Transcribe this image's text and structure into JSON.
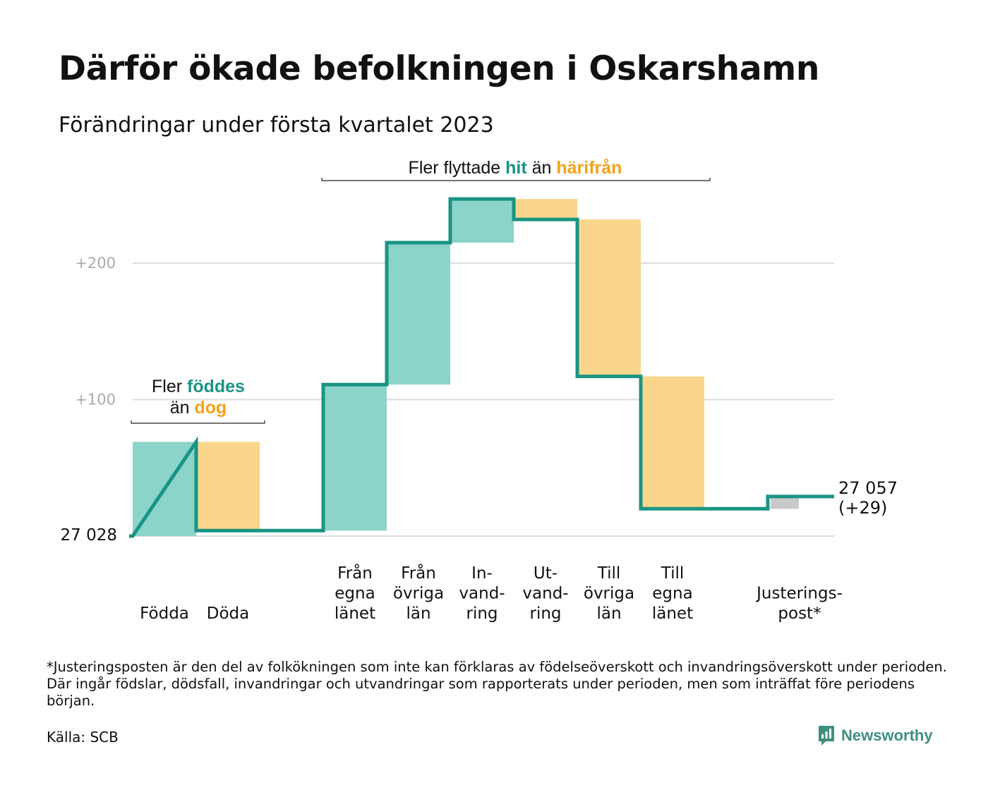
{
  "title": "Därför ökade befolkningen i Oskarshamn",
  "subtitle": "Förändringar under första kvartalet 2023",
  "footnote": "*Justeringsposten är den del av folkökningen som inte kan förklaras av födelseöverskott och invandringsöverskott under perioden. Där ingår födslar, dödsfall, invandringar och utvandringar som rapporterats under perioden, men som inträffat före periodens början.",
  "source": "Källa: SCB",
  "brand": "Newsworthy",
  "colors": {
    "increase": "#8bd4c9",
    "decrease": "#f9d68c",
    "adjustment": "#c9c9cb",
    "line": "#1a9483",
    "highlight_teal": "#1a9483",
    "highlight_orange": "#f2a31b",
    "grid": "#dcdcdc",
    "tick_label": "#aaaaaa"
  },
  "chart_data": {
    "type": "waterfall",
    "start_value": 27028,
    "start_label": "27 028",
    "end_label": "27 057",
    "end_change_label": "(+29)",
    "ylim": [
      0,
      250
    ],
    "yticks": [
      {
        "value": 100,
        "label": "+100"
      },
      {
        "value": 200,
        "label": "+200"
      }
    ],
    "categories": [
      {
        "label": [
          "Födda"
        ],
        "change": 69,
        "kind": "increase"
      },
      {
        "label": [
          "Döda"
        ],
        "change": -65,
        "kind": "decrease"
      },
      {
        "label": [],
        "change": 0,
        "kind": "gap"
      },
      {
        "label": [
          "Från",
          "egna",
          "länet"
        ],
        "change": 107,
        "kind": "increase"
      },
      {
        "label": [
          "Från",
          "övriga",
          "län"
        ],
        "change": 104,
        "kind": "increase"
      },
      {
        "label": [
          "In-",
          "vand-",
          "ring"
        ],
        "change": 32,
        "kind": "increase"
      },
      {
        "label": [
          "Ut-",
          "vand-",
          "ring"
        ],
        "change": -15,
        "kind": "decrease"
      },
      {
        "label": [
          "Till",
          "övriga",
          "län"
        ],
        "change": -115,
        "kind": "decrease"
      },
      {
        "label": [
          "Till",
          "egna",
          "länet"
        ],
        "change": -97,
        "kind": "decrease"
      },
      {
        "label": [],
        "change": 0,
        "kind": "gap"
      },
      {
        "label": [
          "Justerings-",
          "post*"
        ],
        "change": 9,
        "kind": "adjustment"
      }
    ],
    "annotations": [
      {
        "lines": [
          [
            {
              "text": "Fler "
            },
            {
              "text": "föddes",
              "color": "teal"
            }
          ],
          [
            {
              "text": "än "
            },
            {
              "text": "dog",
              "color": "orange"
            }
          ]
        ]
      },
      {
        "lines": [
          [
            {
              "text": "Fler flyttade "
            },
            {
              "text": "hit",
              "color": "teal"
            },
            {
              "text": " än "
            },
            {
              "text": "härifrån",
              "color": "orange"
            }
          ]
        ]
      }
    ]
  }
}
